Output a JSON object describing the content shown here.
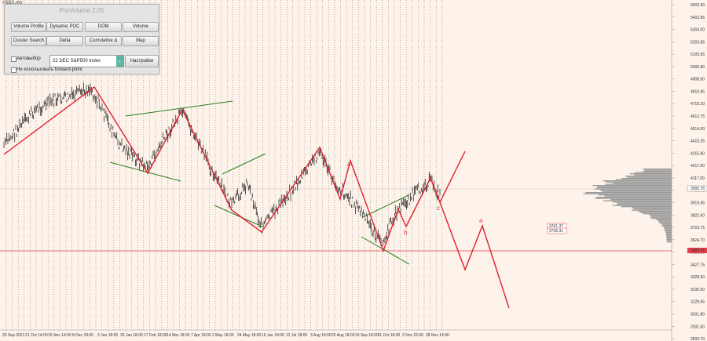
{
  "symbol": "#SBX.nm",
  "panel": {
    "title": "ProVolume 2.05",
    "buttons": [
      {
        "label": "Volume Profile",
        "active": true
      },
      {
        "label": "Dynamic POC",
        "active": true
      },
      {
        "label": "DOM",
        "active": false
      },
      {
        "label": "Volume",
        "active": false
      },
      {
        "label": "Cluster Search",
        "active": false
      },
      {
        "label": "Delta",
        "active": false
      },
      {
        "label": "Cumulative Δ",
        "active": false
      },
      {
        "label": "Map",
        "active": false
      }
    ],
    "auto_select_label": "Автовыбор",
    "instrument_value": "22 DEC S&P500 Index",
    "settings_label": "Настройки",
    "forward_point_label": "Не использовать forward-point"
  },
  "price_axis": [
    "5503.90",
    "5403.95",
    "5304.00",
    "5203.65",
    "5105.65",
    "5005.80",
    "4908.00",
    "4810.65",
    "4710.20",
    "4612.75",
    "4514.00",
    "4415.35",
    "4315.80",
    "4217.60",
    "4117.00",
    "4019.30",
    "3919.45",
    "3822.60",
    "3723.75",
    "3624.70",
    "3526.30",
    "3427.75",
    "3328.50",
    "3230.00",
    "3129.65",
    "3031.80",
    "2931.50",
    "2833.70"
  ],
  "current_price": "3995.76",
  "support_price": "3489.76",
  "level_labels": [
    "3761.37",
    "3736.31"
  ],
  "time_axis": [
    "29 Sep 2021",
    "21 Oct 14:00",
    "15 Nov 14:00",
    "8 Dec 18:00",
    "3 Jan 18:00",
    "26 Jan 18:00",
    "17 Feb 18:00",
    "14 Mar 18:00",
    "7 Apr 18:00",
    "2 May 18:00",
    "24 May 18:00",
    "16 Jun 18:00",
    "12 Jul 18:00",
    "3 Aug 18:00",
    "25 Aug 18:00",
    "19 Sep 18:00",
    "11 Oct 18:00",
    "2 Nov 22:00",
    "28 Nov 14:00"
  ],
  "wave_labels": [
    "a",
    "b",
    "c",
    "a"
  ],
  "colors": {
    "background": "#fdf3ea",
    "wave_lines": "#e0202c",
    "trend_lines": "#2e7d1e",
    "price_bars": "#111111",
    "grid_lines": "#707070",
    "profile": "#9a9a9a",
    "support_line": "#e8404a",
    "button_active": "#5fb4a4"
  },
  "icons": [
    "checkbox-icon",
    "chevron-down-icon"
  ]
}
